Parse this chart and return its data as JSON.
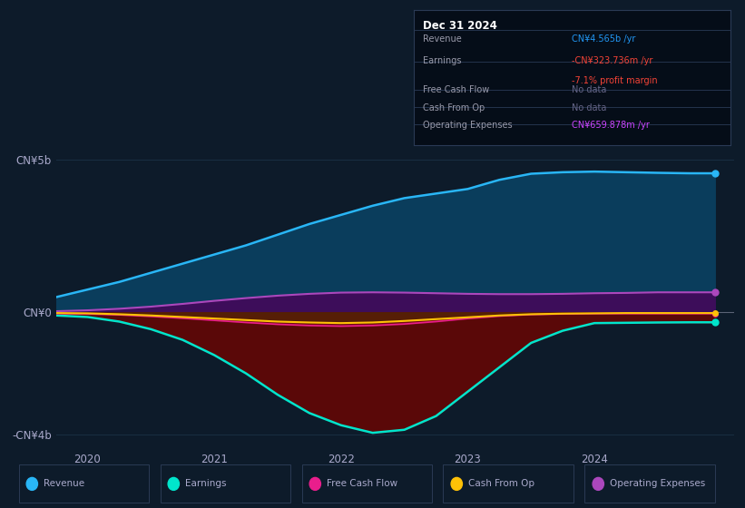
{
  "bg_color": "#0d1b2a",
  "plot_bg_color": "#0d1b2a",
  "title_box": {
    "date": "Dec 31 2024",
    "rows": [
      {
        "label": "Revenue",
        "value": "CN¥4.565b /yr",
        "value_color": "#2196f3",
        "sub": null
      },
      {
        "label": "Earnings",
        "value": "-CN¥323.736m /yr",
        "value_color": "#f44336",
        "sub": "-7.1% profit margin",
        "sub_color": "#f44336"
      },
      {
        "label": "Free Cash Flow",
        "value": "No data",
        "value_color": "#666688",
        "sub": null
      },
      {
        "label": "Cash From Op",
        "value": "No data",
        "value_color": "#666688",
        "sub": null
      },
      {
        "label": "Operating Expenses",
        "value": "CN¥659.878m /yr",
        "value_color": "#cc44ff",
        "sub": null
      }
    ]
  },
  "x_years": [
    2019.75,
    2020.0,
    2020.25,
    2020.5,
    2020.75,
    2021.0,
    2021.25,
    2021.5,
    2021.75,
    2022.0,
    2022.25,
    2022.5,
    2022.75,
    2023.0,
    2023.25,
    2023.5,
    2023.75,
    2024.0,
    2024.25,
    2024.5,
    2024.75,
    2024.95
  ],
  "revenue": [
    0.5,
    0.75,
    1.0,
    1.3,
    1.6,
    1.9,
    2.2,
    2.55,
    2.9,
    3.2,
    3.5,
    3.75,
    3.9,
    4.05,
    4.35,
    4.55,
    4.6,
    4.62,
    4.6,
    4.58,
    4.565,
    4.565
  ],
  "earnings": [
    -0.1,
    -0.15,
    -0.3,
    -0.55,
    -0.9,
    -1.4,
    -2.0,
    -2.7,
    -3.3,
    -3.7,
    -3.95,
    -3.85,
    -3.4,
    -2.6,
    -1.8,
    -1.0,
    -0.6,
    -0.35,
    -0.34,
    -0.33,
    -0.324,
    -0.324
  ],
  "free_cash_flow": [
    -0.04,
    -0.05,
    -0.08,
    -0.13,
    -0.19,
    -0.26,
    -0.33,
    -0.39,
    -0.43,
    -0.45,
    -0.43,
    -0.38,
    -0.3,
    -0.2,
    -0.12,
    -0.07,
    -0.05,
    -0.04,
    -0.04,
    -0.04,
    -0.04,
    -0.04
  ],
  "cash_from_op": [
    -0.02,
    -0.03,
    -0.06,
    -0.1,
    -0.15,
    -0.2,
    -0.25,
    -0.3,
    -0.33,
    -0.35,
    -0.33,
    -0.28,
    -0.22,
    -0.16,
    -0.1,
    -0.06,
    -0.04,
    -0.03,
    -0.02,
    -0.02,
    -0.02,
    -0.02
  ],
  "op_expenses": [
    0.04,
    0.07,
    0.12,
    0.19,
    0.28,
    0.38,
    0.47,
    0.55,
    0.61,
    0.65,
    0.66,
    0.65,
    0.63,
    0.61,
    0.6,
    0.6,
    0.61,
    0.63,
    0.64,
    0.66,
    0.66,
    0.66
  ],
  "ylim": [
    -4.5,
    5.5
  ],
  "yticks": [
    -4.0,
    0.0,
    5.0
  ],
  "ytick_labels": [
    "-CN¥4b",
    "CN¥0",
    "CN¥5b"
  ],
  "xticks": [
    2020,
    2021,
    2022,
    2023,
    2024
  ],
  "legend_items": [
    {
      "label": "Revenue",
      "color": "#29b6f6"
    },
    {
      "label": "Earnings",
      "color": "#00e5cc"
    },
    {
      "label": "Free Cash Flow",
      "color": "#e91e8c"
    },
    {
      "label": "Cash From Op",
      "color": "#ffc107"
    },
    {
      "label": "Operating Expenses",
      "color": "#ab47bc"
    }
  ],
  "revenue_line_color": "#29b6f6",
  "revenue_fill_color": "#0a3d5c",
  "earnings_line_color": "#00e5cc",
  "earnings_fill_color": "#5a0808",
  "fcf_line_color": "#e91e8c",
  "fcf_fill_color": "#7a0818",
  "cashop_line_color": "#ffc107",
  "cashop_fill_color": "#4a2800",
  "opex_line_color": "#ab47bc",
  "opex_fill_color": "#3d0d5a",
  "grid_color": "#1a3045",
  "text_color": "#aaaacc",
  "zero_line_color": "#888899"
}
